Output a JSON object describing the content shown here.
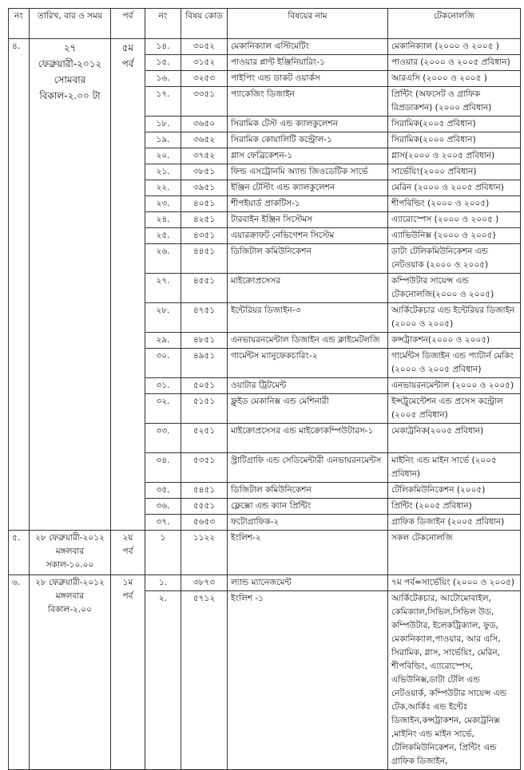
{
  "header": [
    "নং",
    "তারিখ, বার ও সময়",
    "পর্ব",
    "নং",
    "বিষয় কোড",
    "বিষয়ের নাম",
    "টেকনোলজি"
  ],
  "sections": [
    {
      "no": "৪.",
      "date": "২৭ ফেব্রুয়ারী-২০১২",
      "day": "সোমবার",
      "time": "বিকাল-২.০০ টা",
      "semester": "৫ম পর্ব",
      "rows": [
        {
          "no": "১৪.",
          "code": "৩০৫২",
          "subject": "মেকানিক্যাল এস্টিমেটিং",
          "tech": "মেকানিক্যাল (২০০০ ও ২০০৫ )"
        },
        {
          "no": "১৫.",
          "code": "৩১৫২",
          "subject": "পাওয়ার প্লান্ট ইঞ্জিনিয়ারিং-১",
          "tech": "পাওয়ার (২০০০ ও ২০০৫ প্রবিধান)"
        },
        {
          "no": "১৬.",
          "code": "৩২৫৩",
          "subject": "পাইপিং এন্ড ডাকট ওয়ার্কস",
          "tech": "আরএসি (২০০০ ও ২০০৫ )"
        },
        {
          "no": "১৭.",
          "code": "৩৩৫১",
          "subject": "প্যাকেজিং ডিজাইন",
          "tech": "প্রিন্টিং (অফসেট ও গ্রাফিক রিপ্রডাকশন) (২০০০ প্রবিধান)"
        },
        {
          "no": "১৮.",
          "code": "৩৬৫০",
          "subject": "সিরামিক টেস্ট এন্ড ক্যালকুলেশন",
          "tech": "সিরামিক(২০০৫ প্রবিধান)"
        },
        {
          "no": "১৯.",
          "code": "৩৬৫২",
          "subject": "সিরামিক কোয়ালিটি কন্ট্রোল-১",
          "tech": "সিরামিক(২০০০ প্রবিধান)"
        },
        {
          "no": "২০.",
          "code": "৩৭৫২",
          "subject": "গ্লাস ফেব্রিকেশন-১",
          "tech": "গ্লাস(২০০০ ও ২০০৫ প্রবিধান)"
        },
        {
          "no": "২১.",
          "code": "৩৮৫১",
          "subject": "ফিল্ড এসট্রোনমি অ্যান্ড জিওডেটিক সার্ভে",
          "tech": "সার্ভেয়িং(২০০০ প্রবিধান)"
        },
        {
          "no": "২২.",
          "code": "৩৯৫১",
          "subject": "ইঞ্জিন টেস্টিং এন্ড ক্যালকুলেশন",
          "tech": "মেরিন (২০০০ ও ২০০৫ প্রবিধান)"
        },
        {
          "no": "২৩.",
          "code": "৪০৫১",
          "subject": "শীপইয়ার্ড প্রাকটিস-১",
          "tech": "শীপবিল্ডিং (২০০০ ও ২০০৫)"
        },
        {
          "no": "২৪.",
          "code": "৪২৫১",
          "subject": "টারবাইন ইঞ্জিন সিস্টেমস",
          "tech": "এ্যারোস্পেস (২০০০ ও ২০০৫ )"
        },
        {
          "no": "২৫.",
          "code": "৪৩৫১",
          "subject": "এয়ারক্রাফট নেভিগেশন সিস্টেম",
          "tech": "এ্যাভিউনিক্স (২০০০ ও ২০০৫)"
        },
        {
          "no": "২৬.",
          "code": "৪৪৫১",
          "subject": "ডিজিটাল কমিউনিকেশন",
          "tech": "ডাটা টেলিকমিউনিকেশন এন্ড নেটওয়াক (২০০০ ও ২০০৫)"
        },
        {
          "no": "২৭.",
          "code": "৪৫৫১",
          "subject": "মাইক্রোপ্রসেসর",
          "tech": "কম্পিউটার সায়েন্স এন্ড টেকনোলজি(২০০০ ও ২০০৫)"
        },
        {
          "no": "২৮.",
          "code": "৪৭৫১",
          "subject": "ইন্টেরিয়র ডিজাইন-৩",
          "tech": "আর্কিটেকচার এন্ড ইন্টেরিয়র ডিজাইন (২০০০ ও ২০০৫)"
        },
        {
          "no": "২৯.",
          "code": "৪৮৫১",
          "subject": "এনভায়রনমেন্টাল ডিজাইন এন্ড ক্লাইমেটলজি",
          "tech": "কন্সট্রাকশন(২০০০ ও ২০০৫)"
        },
        {
          "no": "৩০.",
          "code": "৪৯৫১",
          "subject": "গার্মেন্টস ম্যানুফেকচারিং-২",
          "tech": "গার্মেন্টস ডিজাইন এন্ড প্যাটার্ন মেকিং (২০০০ ও ২০০৫ প্রবিধান)"
        },
        {
          "no": "৩১.",
          "code": "৫০৫১",
          "subject": "ওয়াটার ট্রিটমেন্ট",
          "tech": "এনভায়রনমেন্টাল (২০০০ ও ২০০৫)"
        },
        {
          "no": "৩২.",
          "code": "৫১৫১",
          "subject": "ফ্লুইড মেকানিক্স এন্ড মেশিনারী",
          "tech": "ইন্সট্রুমেন্টেশন এন্ড প্রসেস কন্ট্রোল (২০০৫ প্রবিধান)"
        },
        {
          "no": "৩৩.",
          "code": "৫২৫১",
          "subject": "মাইক্রোপ্রসেসর এন্ড মাইক্রোকম্পিউটারস-১",
          "tech": "মেকাট্রনিক(২০০৫ প্রবিধান)"
        },
        {
          "no": "৩৪.",
          "code": "৫৩৫১",
          "subject": "স্ট্রাটিগ্রাফি এন্ড সেডিমেন্টারী এনভায়রনমেন্টস",
          "tech": "মাইনিং এন্ড মাইন সার্ভে (২০০৫ প্রবিধান)"
        },
        {
          "no": "৩৫.",
          "code": "৫৪৫১",
          "subject": "ডিজিটাল কমিউনিকেশন",
          "tech": "টেলিকমিউনিকেশন (২০০৫)"
        },
        {
          "no": "৩৬.",
          "code": "৫৫৫১",
          "subject": "ফ্লেক্সো এন্ড ক্যান প্রিন্টিং",
          "tech": "প্রিন্টিং (২০০৫ প্রবিধান)"
        },
        {
          "no": "৩৭.",
          "code": "৫৬৫৩",
          "subject": "ফটোগ্রাফিক-২",
          "tech": "গ্রাফিক ডিজাইন (২০০৫ প্রবিধান)"
        }
      ]
    },
    {
      "no": "৫.",
      "date": "২৮ ফেব্রুয়ারী-২০১২",
      "day": "মঙ্গলবার",
      "time": "সকাল-১০.০০",
      "semester": "২য় পর্ব",
      "rows": [
        {
          "no": "১",
          "code": "১১২২",
          "subject": "ইংলিশ-২",
          "tech": "সকল টেকনোলজি"
        }
      ]
    },
    {
      "no": "৬.",
      "date": "২৮ ফেব্রুয়ারী-২০১২",
      "day": "মঙ্গলবার",
      "time": "বিকাল-২.০০",
      "semester": "১ম পর্ব",
      "rows": [
        {
          "no": "১.",
          "code": "৩৮৭৩",
          "subject": "ল্যান্ড ম্যানেজমেন্ট",
          "tech": "৭ম পর্ব=সার্ভেয়িং (২০০০ ও ২০০৫)"
        },
        {
          "no": "২.",
          "code": "৫৭১২",
          "subject": "ইংলিশ -১",
          "tech": "আর্কিটেকচার, আটোমোবাইল, কেমিক্যাল,সিভিল,সিভিল উড, কম্পিউটার, ইলেকট্রিক্যাল, ফুড, মেকানিক্যাল,পাওয়ার, আর এসি, সিরামিক, গ্লাস, সার্ভেয়িং, মেরিন, শীপবিল্ডিং, এ্যারোস্পেস, এভিউনিক্স,ডাটা টেলি এন্ড নেটওয়ার্ক, কম্পিউটার সায়েন্স এন্ড টেক,আর্কিঃ এন্ড ইন্টেঃ ডিজাইন,কন্সট্রাকশন, মেকাট্রনিক্স ,মাইনিং এন্ড মাইন সার্ভে, টেলিকমিউনিকেশন, প্রিন্টিং এন্ড গ্রাফিক ডিজাইন,"
        }
      ]
    }
  ]
}
